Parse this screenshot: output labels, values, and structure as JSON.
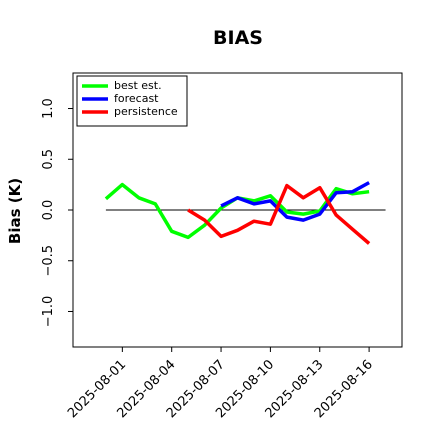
{
  "chart_data": {
    "type": "line",
    "title": "BIAS",
    "xlabel": "",
    "ylabel": "Bias (K)",
    "x": [
      "2025-07-31",
      "2025-08-01",
      "2025-08-02",
      "2025-08-03",
      "2025-08-04",
      "2025-08-05",
      "2025-08-06",
      "2025-08-07",
      "2025-08-08",
      "2025-08-09",
      "2025-08-10",
      "2025-08-11",
      "2025-08-12",
      "2025-08-13",
      "2025-08-14",
      "2025-08-15",
      "2025-08-16"
    ],
    "xlim": [
      "2025-07-29",
      "2025-08-18"
    ],
    "ylim": [
      -1.35,
      1.35
    ],
    "yticks": [
      -1.0,
      -0.5,
      0.0,
      0.5,
      1.0
    ],
    "ytick_labels": [
      "−1.0",
      "−0.5",
      "0.0",
      "0.5",
      "1.0"
    ],
    "xticks": [
      {
        "date": "2025-08-01",
        "label": "2025-08-01",
        "color": "#000000"
      },
      {
        "date": "2025-08-04",
        "label": "2025-08-04",
        "color": "#000000"
      },
      {
        "date": "2025-08-07",
        "label": "2025-08-07",
        "color": "#228b22"
      },
      {
        "date": "2025-08-10",
        "label": "2025-08-10",
        "color": "#000000"
      },
      {
        "date": "2025-08-13",
        "label": "2025-08-13",
        "color": "#000000"
      },
      {
        "date": "2025-08-16",
        "label": "2025-08-16",
        "color": "#000000"
      }
    ],
    "reference_line": {
      "y": 0.0,
      "x": [
        "2025-07-31",
        "2025-08-17"
      ],
      "color": "#000000"
    },
    "legend": {
      "placement": "top-left"
    },
    "grid": false,
    "series": [
      {
        "name": "best est.",
        "color": "#00ff00",
        "x": [
          "2025-07-31",
          "2025-08-01",
          "2025-08-02",
          "2025-08-03",
          "2025-08-04",
          "2025-08-05",
          "2025-08-06",
          "2025-08-07",
          "2025-08-08",
          "2025-08-09",
          "2025-08-10",
          "2025-08-11",
          "2025-08-12",
          "2025-08-13",
          "2025-08-14",
          "2025-08-15",
          "2025-08-16"
        ],
        "values": [
          0.11,
          0.25,
          0.12,
          0.06,
          -0.21,
          -0.27,
          -0.15,
          0.02,
          0.12,
          0.09,
          0.14,
          -0.02,
          -0.04,
          -0.01,
          0.21,
          0.16,
          0.18
        ]
      },
      {
        "name": "forecast",
        "color": "#0000ff",
        "x": [
          "2025-08-07",
          "2025-08-08",
          "2025-08-09",
          "2025-08-10",
          "2025-08-11",
          "2025-08-12",
          "2025-08-13",
          "2025-08-14",
          "2025-08-15",
          "2025-08-16"
        ],
        "values": [
          0.04,
          0.12,
          0.06,
          0.09,
          -0.07,
          -0.1,
          -0.04,
          0.17,
          0.18,
          0.27
        ]
      },
      {
        "name": "persistence",
        "color": "#ff0000",
        "x": [
          "2025-08-05",
          "2025-08-06",
          "2025-08-07",
          "2025-08-08",
          "2025-08-09",
          "2025-08-10",
          "2025-08-11",
          "2025-08-12",
          "2025-08-13",
          "2025-08-14",
          "2025-08-15",
          "2025-08-16"
        ],
        "values": [
          0.0,
          -0.1,
          -0.26,
          -0.2,
          -0.11,
          -0.14,
          0.24,
          0.12,
          0.22,
          -0.05,
          -0.19,
          -0.33
        ]
      }
    ]
  }
}
